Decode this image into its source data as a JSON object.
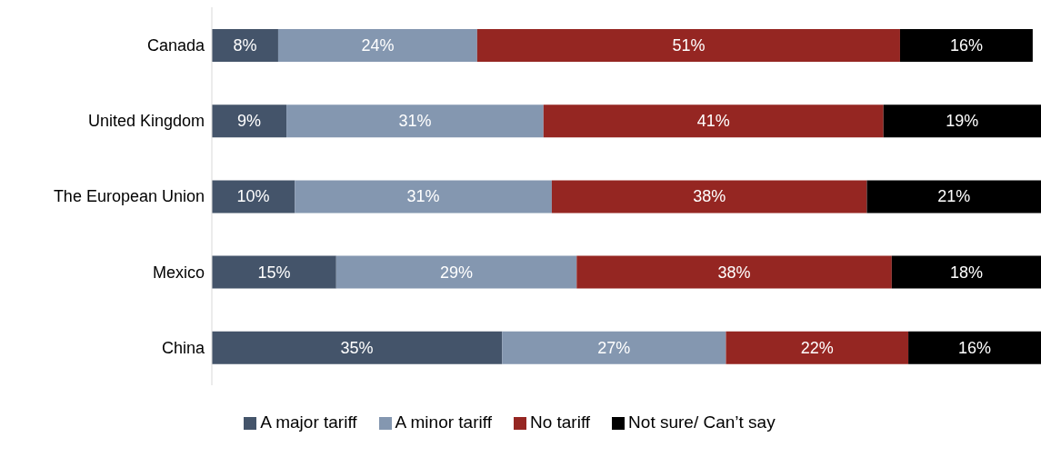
{
  "chart_data": {
    "type": "bar",
    "orientation": "horizontal",
    "stacked": true,
    "categories": [
      "Canada",
      "United Kingdom",
      "The European Union",
      "Mexico",
      "China"
    ],
    "legend": "bottom",
    "grid": false,
    "series": [
      {
        "name": "A major tariff",
        "color": "#44546a",
        "values": [
          8,
          9,
          10,
          15,
          35
        ],
        "value_labels": [
          "8%",
          "9%",
          "10%",
          "15%",
          "35%"
        ]
      },
      {
        "name": "A minor tariff",
        "color": "#8497b0",
        "values": [
          24,
          31,
          31,
          29,
          27
        ],
        "value_labels": [
          "24%",
          "31%",
          "31%",
          "29%",
          "27%"
        ]
      },
      {
        "name": "No tariff",
        "color": "#952622",
        "values": [
          51,
          41,
          38,
          38,
          22
        ],
        "value_labels": [
          "51%",
          "41%",
          "38%",
          "38%",
          "22%"
        ]
      },
      {
        "name": "Not sure/ Can’t say",
        "color": "#000000",
        "values": [
          16,
          19,
          21,
          18,
          16
        ],
        "value_labels": [
          "16%",
          "19%",
          "21%",
          "18%",
          "16%"
        ]
      }
    ]
  }
}
